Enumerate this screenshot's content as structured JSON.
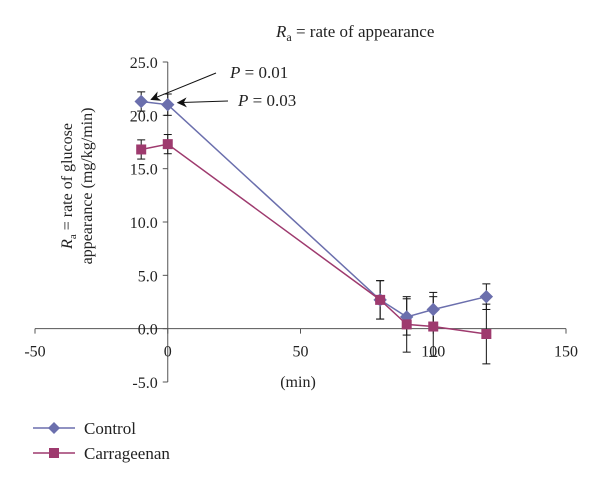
{
  "chart_data": {
    "type": "line",
    "title_var": "R",
    "title_sub": "a",
    "title_rest": " =  rate of appearance",
    "xlabel": "(min)",
    "ylabel_line1_var": "R",
    "ylabel_line1_sub": "a",
    "ylabel_line1_rest": " = rate of glucose",
    "ylabel_line2": "appearance (mg/kg/min)",
    "xlim": [
      -50,
      150
    ],
    "ylim": [
      -5,
      25
    ],
    "x_ticks": [
      "-50",
      "0",
      "50",
      "100",
      "150"
    ],
    "y_ticks": [
      "-5.0",
      "0.0",
      "5.0",
      "10.0",
      "15.0",
      "20.0",
      "25.0"
    ],
    "x_tick_values": [
      -50,
      0,
      50,
      100,
      150
    ],
    "y_tick_values": [
      -5,
      0,
      5,
      10,
      15,
      20,
      25
    ],
    "series": [
      {
        "name": "Control",
        "color": "#6b6fad",
        "marker": "diamond",
        "x": [
          -10,
          0,
          80,
          90,
          100,
          120
        ],
        "y": [
          21.3,
          21.0,
          2.7,
          1.1,
          1.8,
          3.0
        ],
        "err": [
          0.9,
          1.0,
          1.8,
          1.7,
          1.6,
          1.2
        ]
      },
      {
        "name": "Carrageenan",
        "color": "#9e3a6e",
        "marker": "square",
        "x": [
          -10,
          0,
          80,
          90,
          100,
          120
        ],
        "y": [
          16.8,
          17.3,
          2.7,
          0.4,
          0.2,
          -0.5
        ],
        "err": [
          0.9,
          0.9,
          1.8,
          2.6,
          2.8,
          2.8
        ]
      }
    ],
    "annotations": [
      {
        "var": "P",
        "text": " = 0.01",
        "target_series": 0,
        "target_index": 0
      },
      {
        "var": "P",
        "text": " = 0.03",
        "target_series": 0,
        "target_index": 1
      }
    ],
    "legend_position": "bottom-left"
  }
}
